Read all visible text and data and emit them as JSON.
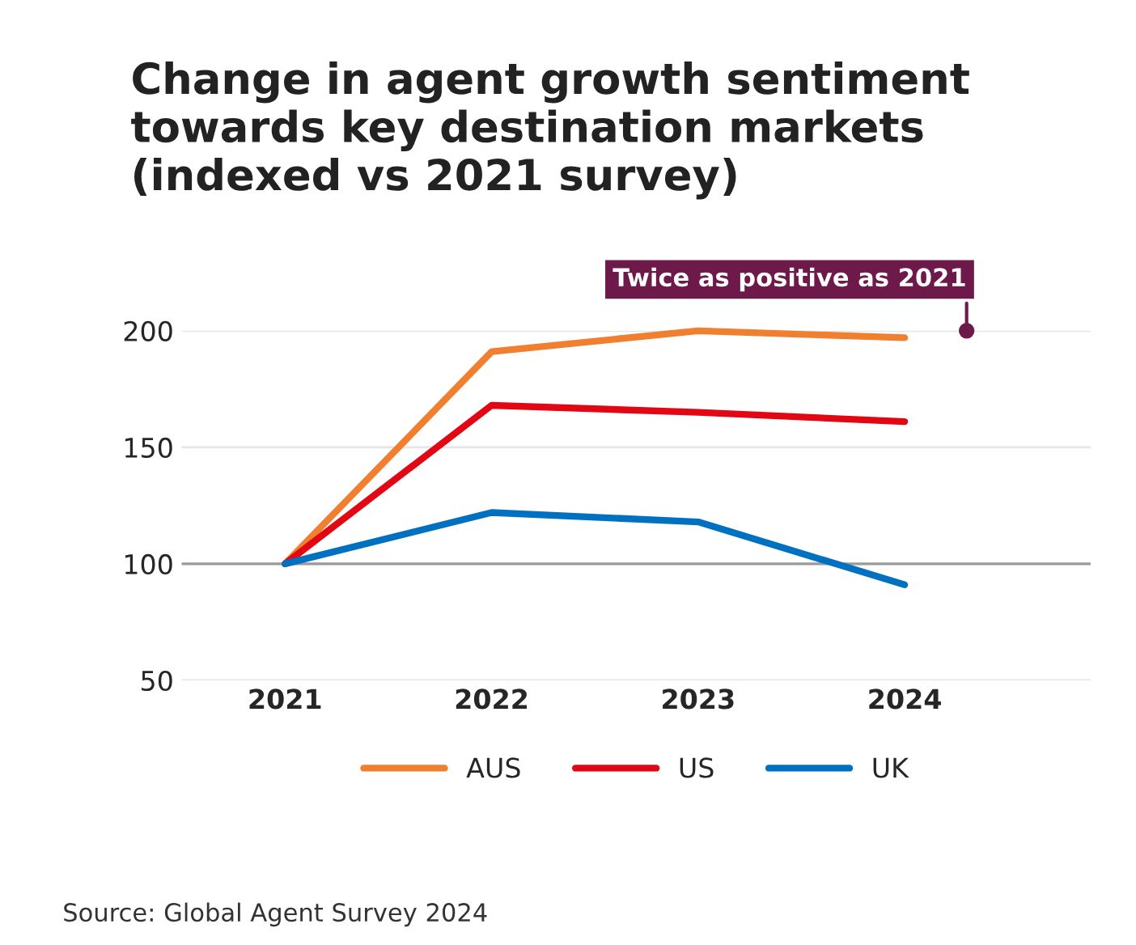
{
  "chart_data": {
    "type": "line",
    "title": "Change in agent growth sentiment\ntowards key destination markets\n(indexed vs 2021 survey)",
    "categories": [
      "2021",
      "2022",
      "2023",
      "2024"
    ],
    "series": [
      {
        "name": "AUS",
        "color": "#f08030",
        "values": [
          100,
          191,
          200,
          197
        ]
      },
      {
        "name": "US",
        "color": "#e30613",
        "values": [
          100,
          168,
          165,
          161
        ]
      },
      {
        "name": "UK",
        "color": "#0070c0",
        "values": [
          100,
          122,
          118,
          91
        ]
      }
    ],
    "ylim": [
      50,
      200
    ],
    "yticks": [
      50,
      100,
      150,
      200
    ],
    "grid": "y",
    "legend": "bottom",
    "marker": "none",
    "line_style": "solid",
    "ref_lines": [
      {
        "axis": "y",
        "value": 100,
        "color": "#9a9a9a"
      }
    ],
    "annotations": [
      {
        "text": "Twice as positive as 2021",
        "y": 200
      },
      "Source: Global Agent Survey 2024"
    ]
  }
}
